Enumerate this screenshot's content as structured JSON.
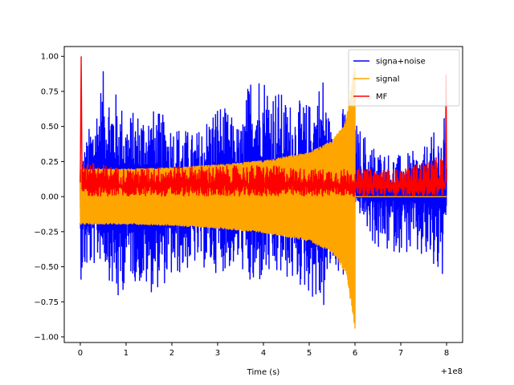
{
  "chart_data": {
    "type": "line",
    "title": "",
    "xlabel": "Time (s)",
    "ylabel": "",
    "x_offset_label": "+1e8",
    "xlim": [
      -0.35,
      8.35
    ],
    "ylim": [
      -1.04,
      1.07
    ],
    "x_ticks": [
      0,
      1,
      2,
      3,
      4,
      5,
      6,
      7,
      8
    ],
    "x_tick_labels": [
      "0",
      "1",
      "2",
      "3",
      "4",
      "5",
      "6",
      "7",
      "8"
    ],
    "y_ticks": [
      -1.0,
      -0.75,
      -0.5,
      -0.25,
      0.0,
      0.25,
      0.5,
      0.75,
      1.0
    ],
    "y_tick_labels": [
      "−1.00",
      "−0.75",
      "−0.50",
      "−0.25",
      "0.00",
      "0.25",
      "0.50",
      "0.75",
      "1.00"
    ],
    "grid": false,
    "legend_position": "top-right",
    "series": [
      {
        "name": "signa+noise",
        "color": "#0000ff",
        "description_points": {
          "x": [
            0,
            0.5,
            0.85,
            1.0,
            1.5,
            2.0,
            2.5,
            3.0,
            3.5,
            3.75,
            4.0,
            4.5,
            5.0,
            5.3,
            5.5,
            5.8,
            6.0,
            6.5,
            7.0,
            7.5,
            8.0
          ],
          "upper": [
            0.25,
            0.9,
            0.72,
            0.6,
            0.65,
            0.55,
            0.45,
            0.7,
            0.5,
            0.97,
            0.92,
            0.7,
            0.68,
            0.9,
            0.45,
            0.7,
            0.55,
            0.35,
            0.3,
            0.35,
            0.6
          ],
          "lower": [
            -0.6,
            -0.45,
            -0.84,
            -0.55,
            -0.7,
            -0.6,
            -0.5,
            -0.55,
            -0.5,
            -0.72,
            -0.6,
            -0.6,
            -0.7,
            -0.86,
            -0.5,
            -0.62,
            -0.05,
            -0.42,
            -0.4,
            -0.5,
            -0.68
          ]
        }
      },
      {
        "name": "signal",
        "color": "#ffa500",
        "description_points": {
          "x": [
            0,
            1,
            2,
            3,
            4,
            5,
            5.5,
            5.8,
            6.0
          ],
          "amplitude": [
            0.2,
            0.2,
            0.21,
            0.23,
            0.26,
            0.32,
            0.4,
            0.55,
            0.94
          ]
        }
      },
      {
        "name": "MF",
        "color": "#ff0000",
        "description_points": {
          "x": [
            0,
            0.05,
            0.2,
            1,
            2,
            3,
            4,
            5,
            6,
            7,
            7.95,
            8.0
          ],
          "upper": [
            1.0,
            0.35,
            0.25,
            0.2,
            0.22,
            0.22,
            0.23,
            0.2,
            0.2,
            0.2,
            0.3,
            0.87
          ],
          "lower": [
            0.0,
            0.0,
            0.0,
            0.0,
            0.0,
            0.0,
            0.0,
            0.0,
            0.0,
            0.0,
            0.0,
            0.0
          ]
        }
      }
    ]
  }
}
